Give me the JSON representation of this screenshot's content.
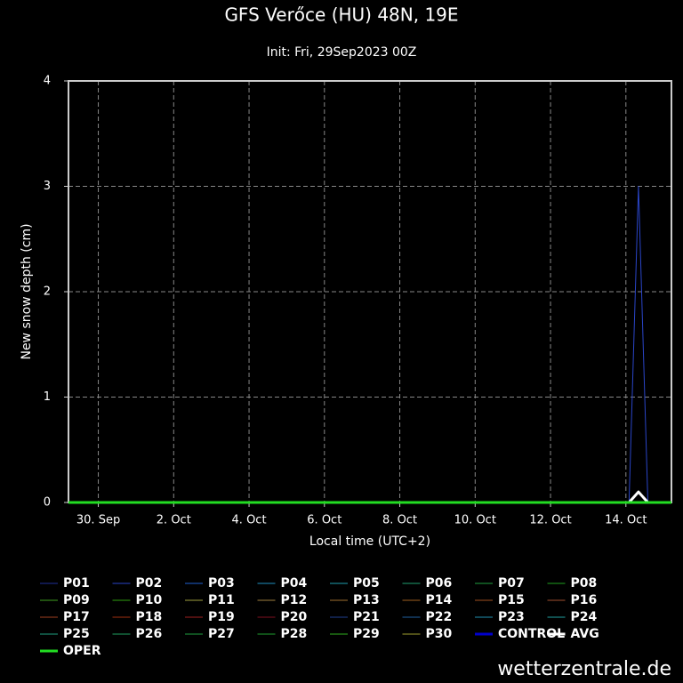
{
  "chart_data": {
    "type": "line",
    "title": "GFS Verőce (HU) 48N, 19E",
    "subtitle": "Init: Fri, 29Sep2023 00Z",
    "x_label": "Local time (UTC+2)",
    "y_label": "New snow depth (cm)",
    "watermark": "wetterzentrale.de",
    "x": [
      3,
      360,
      366,
      372,
      387
    ],
    "xlim": [
      3,
      387
    ],
    "xticks": [
      {
        "value": 22,
        "label": "30. Sep"
      },
      {
        "value": 70,
        "label": "2. Oct"
      },
      {
        "value": 118,
        "label": "4. Oct"
      },
      {
        "value": 166,
        "label": "6. Oct"
      },
      {
        "value": 214,
        "label": "8. Oct"
      },
      {
        "value": 262,
        "label": "10. Oct"
      },
      {
        "value": 310,
        "label": "12. Oct"
      },
      {
        "value": 358,
        "label": "14. Oct"
      }
    ],
    "ylim": [
      0,
      4
    ],
    "yticks": [
      0,
      1,
      2,
      3,
      4
    ],
    "grid": true,
    "series": [
      {
        "name": "P01",
        "color": "#1f2f9a",
        "width": 1,
        "values": [
          0,
          0,
          0,
          0,
          0
        ]
      },
      {
        "name": "P02",
        "color": "#2a45c8",
        "width": 1,
        "values": [
          0,
          0,
          3,
          0,
          0
        ]
      },
      {
        "name": "P03",
        "color": "#2060d0",
        "width": 1,
        "values": [
          0,
          0,
          0,
          0,
          0
        ]
      },
      {
        "name": "P04",
        "color": "#2090c0",
        "width": 1,
        "values": [
          0,
          0,
          0,
          0,
          0
        ]
      },
      {
        "name": "P05",
        "color": "#20a0b0",
        "width": 1,
        "values": [
          0,
          0,
          0,
          0,
          0
        ]
      },
      {
        "name": "P06",
        "color": "#20a070",
        "width": 1,
        "values": [
          0,
          0,
          0,
          0,
          0
        ]
      },
      {
        "name": "P07",
        "color": "#20a040",
        "width": 1,
        "values": [
          0,
          0,
          0,
          0,
          0
        ]
      },
      {
        "name": "P08",
        "color": "#20a020",
        "width": 1,
        "values": [
          0,
          0,
          0,
          0,
          0
        ]
      },
      {
        "name": "P09",
        "color": "#40a020",
        "width": 1,
        "values": [
          0,
          0,
          0,
          0,
          0
        ]
      },
      {
        "name": "P10",
        "color": "#30a010",
        "width": 1,
        "values": [
          0,
          0,
          0,
          0,
          0
        ]
      },
      {
        "name": "P11",
        "color": "#a0a040",
        "width": 1,
        "values": [
          0,
          0,
          0,
          0,
          0
        ]
      },
      {
        "name": "P12",
        "color": "#a08040",
        "width": 1,
        "values": [
          0,
          0,
          0,
          0,
          0
        ]
      },
      {
        "name": "P13",
        "color": "#a07030",
        "width": 1,
        "values": [
          0,
          0,
          0,
          0,
          0
        ]
      },
      {
        "name": "P14",
        "color": "#a06020",
        "width": 1,
        "values": [
          0,
          0,
          0,
          0,
          0
        ]
      },
      {
        "name": "P15",
        "color": "#a05020",
        "width": 1,
        "values": [
          0,
          0,
          0,
          0,
          0
        ]
      },
      {
        "name": "P16",
        "color": "#a05030",
        "width": 1,
        "values": [
          0,
          0,
          0,
          0,
          0
        ]
      },
      {
        "name": "P17",
        "color": "#a04020",
        "width": 1,
        "values": [
          0,
          0,
          0,
          0,
          0
        ]
      },
      {
        "name": "P18",
        "color": "#a03010",
        "width": 1,
        "values": [
          0,
          0,
          0,
          0,
          0
        ]
      },
      {
        "name": "P19",
        "color": "#a02020",
        "width": 1,
        "values": [
          0,
          0,
          0,
          0,
          0
        ]
      },
      {
        "name": "P20",
        "color": "#801020",
        "width": 1,
        "values": [
          0,
          0,
          0,
          0,
          0
        ]
      },
      {
        "name": "P21",
        "color": "#204090",
        "width": 1,
        "values": [
          0,
          0,
          0,
          0,
          0
        ]
      },
      {
        "name": "P22",
        "color": "#2060a0",
        "width": 1,
        "values": [
          0,
          0,
          0,
          0,
          0
        ]
      },
      {
        "name": "P23",
        "color": "#2090b0",
        "width": 1,
        "values": [
          0,
          0,
          0,
          0,
          0
        ]
      },
      {
        "name": "P24",
        "color": "#20a0a0",
        "width": 1,
        "values": [
          0,
          0,
          0,
          0,
          0
        ]
      },
      {
        "name": "P25",
        "color": "#20a080",
        "width": 1,
        "values": [
          0,
          0,
          0,
          0,
          0
        ]
      },
      {
        "name": "P26",
        "color": "#20a060",
        "width": 1,
        "values": [
          0,
          0,
          0,
          0,
          0
        ]
      },
      {
        "name": "P27",
        "color": "#20a040",
        "width": 1,
        "values": [
          0,
          0,
          0,
          0,
          0
        ]
      },
      {
        "name": "P28",
        "color": "#20a030",
        "width": 1,
        "values": [
          0,
          0,
          0,
          0,
          0
        ]
      },
      {
        "name": "P29",
        "color": "#30b020",
        "width": 1,
        "values": [
          0,
          0,
          0,
          0,
          0
        ]
      },
      {
        "name": "P30",
        "color": "#a0a030",
        "width": 1,
        "values": [
          0,
          0,
          0,
          0,
          0
        ]
      },
      {
        "name": "CONTROL",
        "color": "#0000cc",
        "width": 3,
        "values": [
          0,
          0,
          0,
          0,
          0
        ]
      },
      {
        "name": "AVG",
        "color": "#ffffff",
        "width": 3,
        "values": [
          0,
          0,
          0.1,
          0,
          0
        ]
      },
      {
        "name": "OPER",
        "color": "#22dd22",
        "width": 3,
        "values": [
          0,
          0,
          0,
          0,
          0
        ]
      }
    ]
  }
}
